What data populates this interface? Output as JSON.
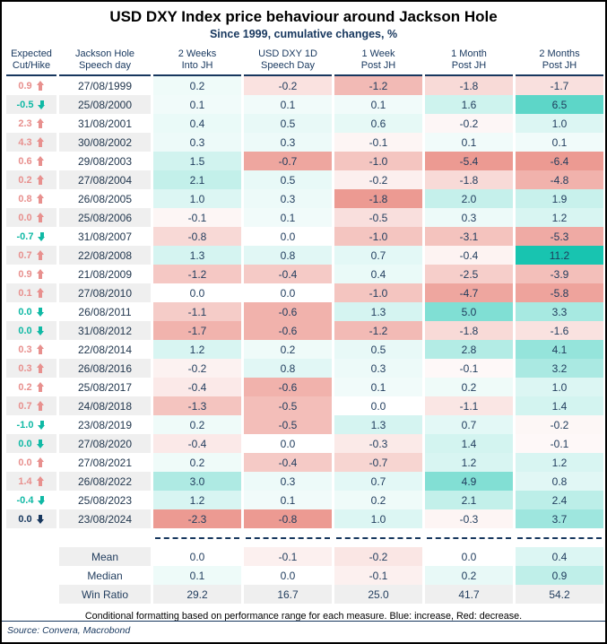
{
  "chart_data": {
    "type": "table",
    "title": "USD DXY Index price behaviour around Jackson Hole",
    "subtitle": "Since 1999, cumulative changes, %",
    "footnote": "Conditional formatting based on performance range for each measure. Blue: increase, Red: decrease.",
    "source": "Source: Convera, Macrobond",
    "columns": [
      {
        "line1": "Expected",
        "line2": "Cut/Hike"
      },
      {
        "line1": "Jackson Hole",
        "line2": "Speech day"
      },
      {
        "line1": "2 Weeks",
        "line2": "Into JH"
      },
      {
        "line1": "USD DXY 1D",
        "line2": "Speech Day"
      },
      {
        "line1": "1 Week",
        "line2": "Post JH"
      },
      {
        "line1": "1 Month",
        "line2": "Post JH"
      },
      {
        "line1": "2 Months",
        "line2": "Post JH"
      }
    ],
    "rows": [
      {
        "expected": "0.9",
        "direction": "up",
        "tone": "hike",
        "date": "27/08/1999",
        "values": [
          "0.2",
          "-0.2",
          "-1.2",
          "-1.8",
          "-1.7"
        ]
      },
      {
        "expected": "-0.5",
        "direction": "down",
        "tone": "cut",
        "date": "25/08/2000",
        "values": [
          "0.1",
          "0.1",
          "0.1",
          "1.6",
          "6.5"
        ]
      },
      {
        "expected": "2.3",
        "direction": "up",
        "tone": "hike",
        "date": "31/08/2001",
        "values": [
          "0.4",
          "0.5",
          "0.6",
          "-0.2",
          "1.0"
        ]
      },
      {
        "expected": "4.3",
        "direction": "up",
        "tone": "hike",
        "date": "30/08/2002",
        "values": [
          "0.3",
          "0.3",
          "-0.1",
          "0.1",
          "0.1"
        ]
      },
      {
        "expected": "0.6",
        "direction": "up",
        "tone": "hike",
        "date": "29/08/2003",
        "values": [
          "1.5",
          "-0.7",
          "-1.0",
          "-5.4",
          "-6.4"
        ]
      },
      {
        "expected": "0.2",
        "direction": "up",
        "tone": "hike",
        "date": "27/08/2004",
        "values": [
          "2.1",
          "0.5",
          "-0.2",
          "-1.8",
          "-4.8"
        ]
      },
      {
        "expected": "0.8",
        "direction": "up",
        "tone": "hike",
        "date": "26/08/2005",
        "values": [
          "1.0",
          "0.3",
          "-1.8",
          "2.0",
          "1.9"
        ]
      },
      {
        "expected": "0.0",
        "direction": "up",
        "tone": "hike",
        "date": "25/08/2006",
        "values": [
          "-0.1",
          "0.1",
          "-0.5",
          "0.3",
          "1.2"
        ]
      },
      {
        "expected": "-0.7",
        "direction": "down",
        "tone": "cut",
        "date": "31/08/2007",
        "values": [
          "-0.8",
          "0.0",
          "-1.0",
          "-3.1",
          "-5.3"
        ]
      },
      {
        "expected": "0.7",
        "direction": "up",
        "tone": "hike",
        "date": "22/08/2008",
        "values": [
          "1.3",
          "0.8",
          "0.7",
          "-0.4",
          "11.2"
        ]
      },
      {
        "expected": "0.9",
        "direction": "up",
        "tone": "hike",
        "date": "21/08/2009",
        "values": [
          "-1.2",
          "-0.4",
          "0.4",
          "-2.5",
          "-3.9"
        ]
      },
      {
        "expected": "0.1",
        "direction": "up",
        "tone": "hike",
        "date": "27/08/2010",
        "values": [
          "0.0",
          "0.0",
          "-1.0",
          "-4.7",
          "-5.8"
        ]
      },
      {
        "expected": "0.0",
        "direction": "down",
        "tone": "cut",
        "date": "26/08/2011",
        "values": [
          "-1.1",
          "-0.6",
          "1.3",
          "5.0",
          "3.3"
        ]
      },
      {
        "expected": "0.0",
        "direction": "down",
        "tone": "cut",
        "date": "31/08/2012",
        "values": [
          "-1.7",
          "-0.6",
          "-1.2",
          "-1.8",
          "-1.6"
        ]
      },
      {
        "expected": "0.3",
        "direction": "up",
        "tone": "hike",
        "date": "22/08/2014",
        "values": [
          "1.2",
          "0.2",
          "0.5",
          "2.8",
          "4.1"
        ]
      },
      {
        "expected": "0.3",
        "direction": "up",
        "tone": "hike",
        "date": "26/08/2016",
        "values": [
          "-0.2",
          "0.8",
          "0.3",
          "-0.1",
          "3.2"
        ]
      },
      {
        "expected": "0.2",
        "direction": "up",
        "tone": "hike",
        "date": "25/08/2017",
        "values": [
          "-0.4",
          "-0.6",
          "0.1",
          "0.2",
          "1.0"
        ]
      },
      {
        "expected": "0.7",
        "direction": "up",
        "tone": "hike",
        "date": "24/08/2018",
        "values": [
          "-1.3",
          "-0.5",
          "0.0",
          "-1.1",
          "1.4"
        ]
      },
      {
        "expected": "-1.0",
        "direction": "down",
        "tone": "cut",
        "date": "23/08/2019",
        "values": [
          "0.2",
          "-0.5",
          "1.3",
          "0.7",
          "-0.2"
        ]
      },
      {
        "expected": "0.0",
        "direction": "down",
        "tone": "cut",
        "date": "27/08/2020",
        "values": [
          "-0.4",
          "0.0",
          "-0.3",
          "1.4",
          "-0.1"
        ]
      },
      {
        "expected": "0.0",
        "direction": "up",
        "tone": "hike",
        "date": "27/08/2021",
        "values": [
          "0.2",
          "-0.4",
          "-0.7",
          "1.2",
          "1.2"
        ]
      },
      {
        "expected": "1.4",
        "direction": "up",
        "tone": "hike",
        "date": "26/08/2022",
        "values": [
          "3.0",
          "0.3",
          "0.7",
          "4.9",
          "0.8"
        ]
      },
      {
        "expected": "-0.4",
        "direction": "down",
        "tone": "cut",
        "date": "25/08/2023",
        "values": [
          "1.2",
          "0.1",
          "0.2",
          "2.1",
          "2.4"
        ]
      },
      {
        "expected": "0.0",
        "direction": "down",
        "tone": "neutral",
        "date": "23/08/2024",
        "values": [
          "-2.3",
          "-0.8",
          "1.0",
          "-0.3",
          "3.7"
        ]
      }
    ],
    "summary": [
      {
        "label": "Mean",
        "values": [
          "0.0",
          "-0.1",
          "-0.2",
          "0.0",
          "0.4"
        ],
        "fill": "scale"
      },
      {
        "label": "Median",
        "values": [
          "0.1",
          "0.0",
          "-0.1",
          "0.2",
          "0.9"
        ],
        "fill": "scale"
      },
      {
        "label": "Win Ratio",
        "values": [
          "29.2",
          "16.7",
          "25.0",
          "41.7",
          "54.2"
        ],
        "fill": "gray"
      }
    ],
    "colors": {
      "accent_navy": "#17375e",
      "teal_max": "#18c4b0",
      "red_max": "#ec9a92",
      "hike_text": "#e8908e",
      "cut_text": "#10b9a5",
      "neutral_text": "#17375e",
      "row_alt": "#efefef",
      "value_text": "#1f3b5c"
    },
    "layout": {
      "legend": "none",
      "grid": "off"
    }
  }
}
